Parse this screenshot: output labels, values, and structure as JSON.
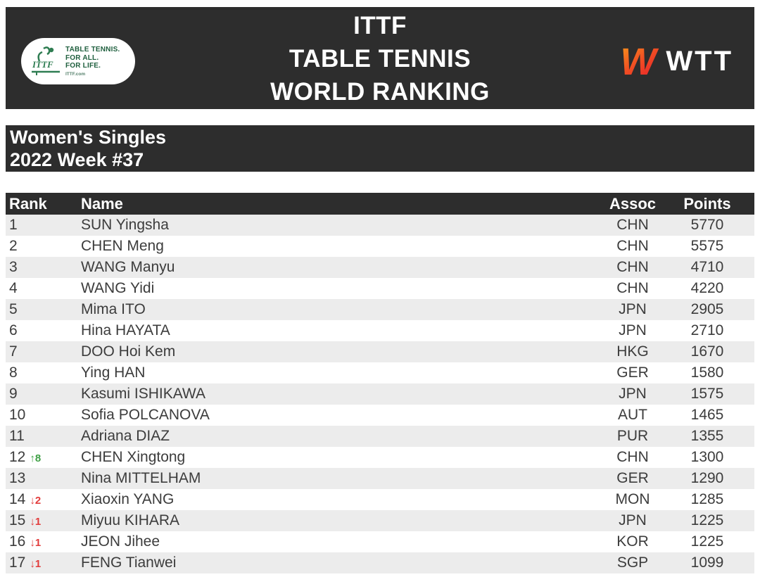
{
  "header": {
    "title_lines": [
      "ITTF",
      "TABLE TENNIS",
      "WORLD RANKING"
    ],
    "ittf_logo": {
      "lines": [
        "TABLE TENNIS.",
        "FOR ALL.",
        "FOR LIFE."
      ],
      "site": "ITTF.com",
      "glyph_text": "ITTF"
    },
    "wtt_logo": {
      "text": "WTT",
      "mark": "W"
    }
  },
  "subheader": {
    "line1": "Women's Singles",
    "line2": "2022 Week #37"
  },
  "table": {
    "columns": [
      "Rank",
      "Name",
      "Assoc",
      "Points"
    ],
    "rows": [
      {
        "rank": "1",
        "change": "",
        "change_dir": "",
        "name": "SUN Yingsha",
        "assoc": "CHN",
        "points": "5770"
      },
      {
        "rank": "2",
        "change": "",
        "change_dir": "",
        "name": "CHEN Meng",
        "assoc": "CHN",
        "points": "5575"
      },
      {
        "rank": "3",
        "change": "",
        "change_dir": "",
        "name": "WANG Manyu",
        "assoc": "CHN",
        "points": "4710"
      },
      {
        "rank": "4",
        "change": "",
        "change_dir": "",
        "name": "WANG Yidi",
        "assoc": "CHN",
        "points": "4220"
      },
      {
        "rank": "5",
        "change": "",
        "change_dir": "",
        "name": "Mima ITO",
        "assoc": "JPN",
        "points": "2905"
      },
      {
        "rank": "6",
        "change": "",
        "change_dir": "",
        "name": "Hina HAYATA",
        "assoc": "JPN",
        "points": "2710"
      },
      {
        "rank": "7",
        "change": "",
        "change_dir": "",
        "name": "DOO Hoi Kem",
        "assoc": "HKG",
        "points": "1670"
      },
      {
        "rank": "8",
        "change": "",
        "change_dir": "",
        "name": "Ying HAN",
        "assoc": "GER",
        "points": "1580"
      },
      {
        "rank": "9",
        "change": "",
        "change_dir": "",
        "name": "Kasumi ISHIKAWA",
        "assoc": "JPN",
        "points": "1575"
      },
      {
        "rank": "10",
        "change": "",
        "change_dir": "",
        "name": "Sofia POLCANOVA",
        "assoc": "AUT",
        "points": "1465"
      },
      {
        "rank": "11",
        "change": "",
        "change_dir": "",
        "name": "Adriana DIAZ",
        "assoc": "PUR",
        "points": "1355"
      },
      {
        "rank": "12",
        "change": "↑8",
        "change_dir": "up",
        "name": "CHEN Xingtong",
        "assoc": "CHN",
        "points": "1300"
      },
      {
        "rank": "13",
        "change": "",
        "change_dir": "",
        "name": "Nina MITTELHAM",
        "assoc": "GER",
        "points": "1290"
      },
      {
        "rank": "14",
        "change": "↓2",
        "change_dir": "down",
        "name": "Xiaoxin YANG",
        "assoc": "MON",
        "points": "1285"
      },
      {
        "rank": "15",
        "change": "↓1",
        "change_dir": "down",
        "name": "Miyuu KIHARA",
        "assoc": "JPN",
        "points": "1225"
      },
      {
        "rank": "16",
        "change": "↓1",
        "change_dir": "down",
        "name": "JEON Jihee",
        "assoc": "KOR",
        "points": "1225"
      },
      {
        "rank": "17",
        "change": "↓1",
        "change_dir": "down",
        "name": "FENG Tianwei",
        "assoc": "SGP",
        "points": "1099"
      }
    ]
  },
  "colors": {
    "bar_bg": "#2d2d2d",
    "row_alt_bg": "#ececec",
    "row_text": "#3c3c3c",
    "rank_up": "#3fa046",
    "rank_down": "#e23c3c",
    "wtt_orange": "#f9a01b",
    "wtt_red": "#e8232a",
    "ittf_green": "#20603f"
  }
}
